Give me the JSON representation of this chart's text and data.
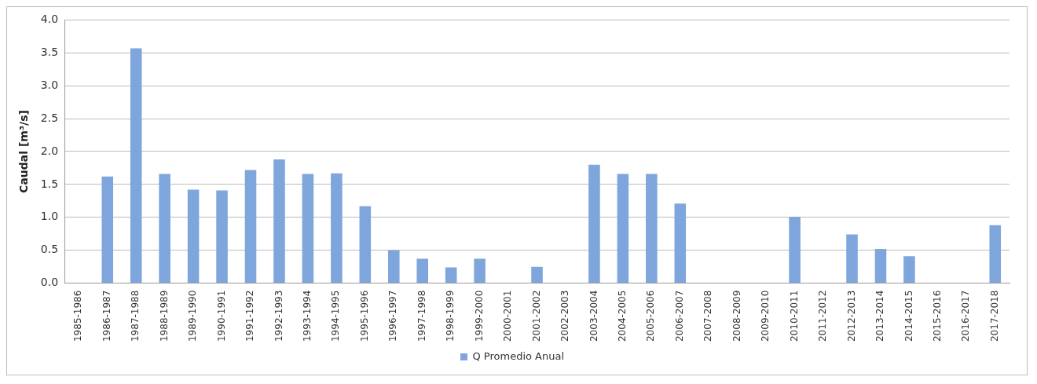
{
  "chart_data": {
    "type": "bar",
    "ylabel": "Caudal [m³/s]",
    "categories": [
      "1985-1986",
      "1986-1987",
      "1987-1988",
      "1988-1989",
      "1989-1990",
      "1990-1991",
      "1991-1992",
      "1992-1993",
      "1993-1994",
      "1994-1995",
      "1995-1996",
      "1996-1997",
      "1997-1998",
      "1998-1999",
      "1999-2000",
      "2000-2001",
      "2001-2002",
      "2002-2003",
      "2003-2004",
      "2004-2005",
      "2005-2006",
      "2006-2007",
      "2007-2008",
      "2008-2009",
      "2009-2010",
      "2010-2011",
      "2011-2012",
      "2012-2013",
      "2013-2014",
      "2014-2015",
      "2015-2016",
      "2016-2017",
      "2017-2018"
    ],
    "series": [
      {
        "name": "Q Promedio Anual",
        "color": "#7fa6dc",
        "values": [
          null,
          1.62,
          3.57,
          1.66,
          1.42,
          1.41,
          1.72,
          1.88,
          1.66,
          1.67,
          1.17,
          0.5,
          0.37,
          0.24,
          0.37,
          null,
          0.25,
          null,
          1.8,
          1.66,
          1.66,
          1.21,
          null,
          null,
          null,
          1.01,
          null,
          0.74,
          0.52,
          0.41,
          null,
          null,
          0.88
        ]
      }
    ],
    "ylim": [
      0,
      4
    ],
    "yticks": [
      {
        "value": 0,
        "label": "0.0"
      },
      {
        "value": 0.5,
        "label": "0.5"
      },
      {
        "value": 1,
        "label": "1.0"
      },
      {
        "value": 1.5,
        "label": "1.5"
      },
      {
        "value": 2,
        "label": "2.0"
      },
      {
        "value": 2.5,
        "label": "2.5"
      },
      {
        "value": 3,
        "label": "3.0"
      },
      {
        "value": 3.5,
        "label": "3.5"
      },
      {
        "value": 4,
        "label": "4.0"
      }
    ],
    "grid": "y",
    "legend": "bottom"
  }
}
